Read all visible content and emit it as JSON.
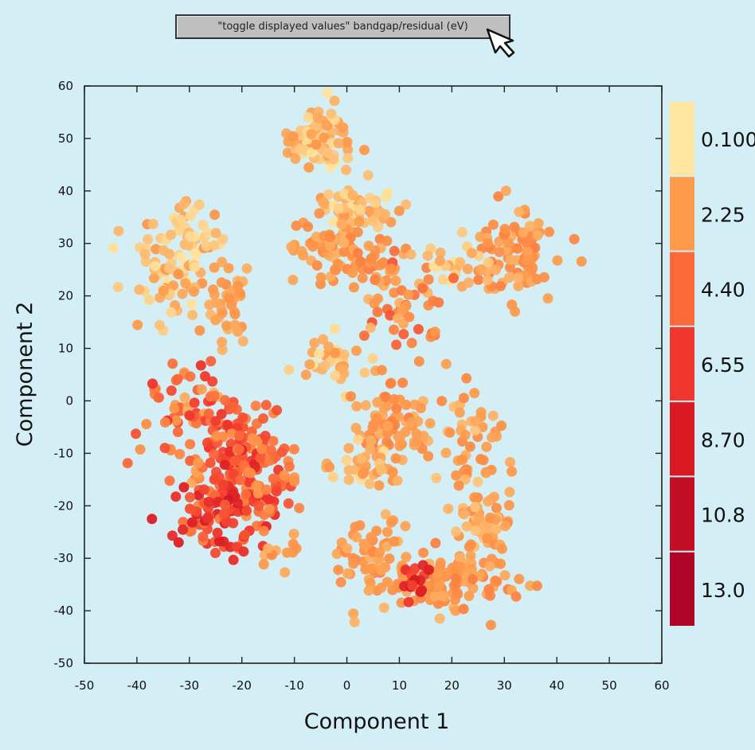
{
  "toggle_button": {
    "label": "\"toggle displayed values\" bandgap/residual (eV)"
  },
  "cursor": {
    "icon": "arrow-cursor-icon"
  },
  "colors": {
    "background": "#d3eff5",
    "ramp": [
      "#fee6a0",
      "#fd9a4c",
      "#fc6a3a",
      "#f0372d",
      "#d91a22",
      "#c30f25",
      "#b00328"
    ]
  },
  "chart_data": {
    "type": "scatter",
    "xlabel": "Component 1",
    "ylabel": "Component 2",
    "xlim": [
      -50,
      60
    ],
    "ylim": [
      -50,
      60
    ],
    "xticks": [
      -50,
      -40,
      -30,
      -20,
      -10,
      0,
      10,
      20,
      30,
      40,
      50,
      60
    ],
    "yticks": [
      -50,
      -40,
      -30,
      -20,
      -10,
      0,
      10,
      20,
      30,
      40,
      50,
      60
    ],
    "grid": false,
    "colorbar": {
      "labels": [
        "0.100",
        "2.25",
        "4.40",
        "6.55",
        "8.70",
        "10.8",
        "13.0"
      ],
      "min": 0.1,
      "max": 13.0
    },
    "clusters": [
      {
        "cx": -5,
        "cy": 50,
        "sx": 3,
        "sy": 3,
        "n": 80,
        "vmin": 0.1,
        "vmax": 2.5
      },
      {
        "cx": 2,
        "cy": 37,
        "sx": 4,
        "sy": 2.5,
        "n": 60,
        "vmin": 0.1,
        "vmax": 2.5
      },
      {
        "cx": -4,
        "cy": 30,
        "sx": 4,
        "sy": 3,
        "n": 50,
        "vmin": 1.5,
        "vmax": 3
      },
      {
        "cx": 5,
        "cy": 26,
        "sx": 4,
        "sy": 3,
        "n": 45,
        "vmin": 1.5,
        "vmax": 3.5
      },
      {
        "cx": -32,
        "cy": 25,
        "sx": 4,
        "sy": 5,
        "n": 80,
        "vmin": 0.1,
        "vmax": 2.5
      },
      {
        "cx": -29,
        "cy": 32,
        "sx": 3,
        "sy": 2,
        "n": 25,
        "vmin": 0.1,
        "vmax": 1.5
      },
      {
        "cx": -23,
        "cy": 18,
        "sx": 2,
        "sy": 4,
        "n": 40,
        "vmin": 1.5,
        "vmax": 3
      },
      {
        "cx": 32,
        "cy": 28,
        "sx": 4,
        "sy": 4,
        "n": 90,
        "vmin": 1.5,
        "vmax": 3.5
      },
      {
        "cx": 21,
        "cy": 26,
        "sx": 4,
        "sy": 3,
        "n": 30,
        "vmin": 0.1,
        "vmax": 2.5
      },
      {
        "cx": 11,
        "cy": 17,
        "sx": 3,
        "sy": 4,
        "n": 40,
        "vmin": 1.5,
        "vmax": 5.5
      },
      {
        "cx": -3,
        "cy": 8,
        "sx": 3,
        "sy": 3,
        "n": 35,
        "vmin": 0.1,
        "vmax": 2.5
      },
      {
        "cx": -27,
        "cy": -5,
        "sx": 6,
        "sy": 6,
        "n": 130,
        "vmin": 1.5,
        "vmax": 7
      },
      {
        "cx": -20,
        "cy": -15,
        "sx": 4,
        "sy": 5,
        "n": 100,
        "vmin": 2.5,
        "vmax": 8.5
      },
      {
        "cx": -26,
        "cy": -23,
        "sx": 4,
        "sy": 3,
        "n": 60,
        "vmin": 3,
        "vmax": 9.5
      },
      {
        "cx": -14,
        "cy": -12,
        "sx": 3,
        "sy": 6,
        "n": 40,
        "vmin": 2,
        "vmax": 6
      },
      {
        "cx": 9,
        "cy": -5,
        "sx": 4,
        "sy": 5,
        "n": 90,
        "vmin": 1.5,
        "vmax": 3.5
      },
      {
        "cx": 3,
        "cy": -12,
        "sx": 3,
        "sy": 2,
        "n": 30,
        "vmin": 0.1,
        "vmax": 2.5
      },
      {
        "cx": 24,
        "cy": -6,
        "sx": 3,
        "sy": 5,
        "n": 40,
        "vmin": 1,
        "vmax": 3
      },
      {
        "cx": 26,
        "cy": -23,
        "sx": 3,
        "sy": 4,
        "n": 60,
        "vmin": 1,
        "vmax": 3
      },
      {
        "cx": 19,
        "cy": -35,
        "sx": 6,
        "sy": 3,
        "n": 110,
        "vmin": 1.5,
        "vmax": 3.5
      },
      {
        "cx": 5,
        "cy": -30,
        "sx": 4,
        "sy": 4,
        "n": 60,
        "vmin": 1.5,
        "vmax": 3
      },
      {
        "cx": 13,
        "cy": -34,
        "sx": 2,
        "sy": 1.5,
        "n": 15,
        "vmin": 6,
        "vmax": 9
      },
      {
        "cx": -13,
        "cy": -29,
        "sx": 2,
        "sy": 1.5,
        "n": 12,
        "vmin": 1.5,
        "vmax": 3
      }
    ]
  }
}
